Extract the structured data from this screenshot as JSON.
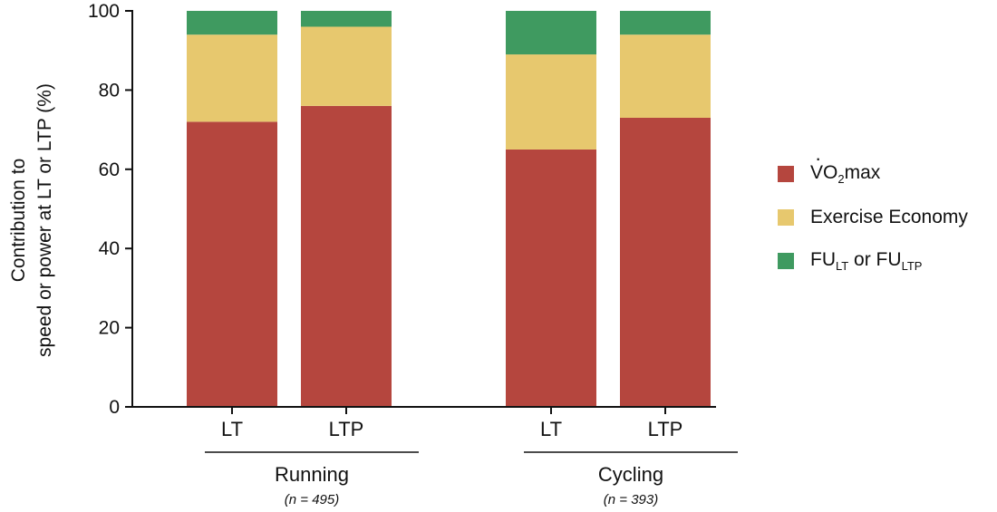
{
  "chart_data": {
    "type": "bar",
    "stacked": true,
    "ylabel_lines": [
      "Contribution to",
      "speed or power at LT or LTP (%)"
    ],
    "ylim": [
      0,
      100
    ],
    "yticks": [
      0,
      20,
      40,
      60,
      80,
      100
    ],
    "categories": [
      "LT",
      "LTP",
      "LT",
      "LTP"
    ],
    "groups": [
      {
        "name": "Running",
        "n_label": "(n = 495)",
        "categories": [
          0,
          1
        ]
      },
      {
        "name": "Cycling",
        "n_label": "(n = 393)",
        "categories": [
          2,
          3
        ]
      }
    ],
    "series": [
      {
        "name": "V̇O2max",
        "color": "#b5463e",
        "values": [
          72,
          76,
          65,
          73
        ]
      },
      {
        "name": "Exercise Economy",
        "color": "#e7c86e",
        "values": [
          22,
          20,
          24,
          21
        ]
      },
      {
        "name": "FULT or FULTP",
        "color": "#3f9a60",
        "values": [
          6,
          4,
          11,
          6
        ]
      }
    ],
    "legend_position": "right",
    "grid": false
  },
  "legend": {
    "vo2_main": "VO",
    "vo2_sub": "2",
    "vo2_rest": "max",
    "economy": "Exercise Economy",
    "fu_a": "FU",
    "fu_a_sub": "LT",
    "fu_mid": " or FU",
    "fu_b_sub": "LTP"
  }
}
